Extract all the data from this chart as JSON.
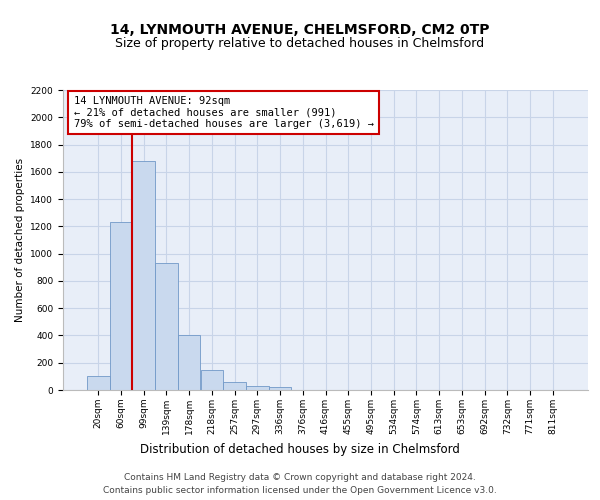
{
  "title": "14, LYNMOUTH AVENUE, CHELMSFORD, CM2 0TP",
  "subtitle": "Size of property relative to detached houses in Chelmsford",
  "xlabel": "Distribution of detached houses by size in Chelmsford",
  "ylabel": "Number of detached properties",
  "categories": [
    "20sqm",
    "60sqm",
    "99sqm",
    "139sqm",
    "178sqm",
    "218sqm",
    "257sqm",
    "297sqm",
    "336sqm",
    "376sqm",
    "416sqm",
    "455sqm",
    "495sqm",
    "534sqm",
    "574sqm",
    "613sqm",
    "653sqm",
    "692sqm",
    "732sqm",
    "771sqm",
    "811sqm"
  ],
  "values": [
    100,
    1230,
    1680,
    930,
    400,
    150,
    60,
    30,
    20,
    0,
    0,
    0,
    0,
    0,
    0,
    0,
    0,
    0,
    0,
    0,
    0
  ],
  "bar_color": "#c9d9ee",
  "bar_edge_color": "#7098c8",
  "highlight_bar_index": 2,
  "highlight_edge_color": "#cc0000",
  "annotation_text": "14 LYNMOUTH AVENUE: 92sqm\n← 21% of detached houses are smaller (991)\n79% of semi-detached houses are larger (3,619) →",
  "annotation_box_color": "#ffffff",
  "annotation_box_edge_color": "#cc0000",
  "red_line_x": 1.5,
  "ylim_max": 2200,
  "yticks": [
    0,
    200,
    400,
    600,
    800,
    1000,
    1200,
    1400,
    1600,
    1800,
    2000,
    2200
  ],
  "footer_line1": "Contains HM Land Registry data © Crown copyright and database right 2024.",
  "footer_line2": "Contains public sector information licensed under the Open Government Licence v3.0.",
  "grid_color": "#c8d4e8",
  "background_color": "#e8eef8",
  "figure_background": "#ffffff",
  "title_fontsize": 10,
  "subtitle_fontsize": 9,
  "xlabel_fontsize": 8.5,
  "ylabel_fontsize": 7.5,
  "tick_fontsize": 6.5,
  "annotation_fontsize": 7.5,
  "footer_fontsize": 6.5
}
